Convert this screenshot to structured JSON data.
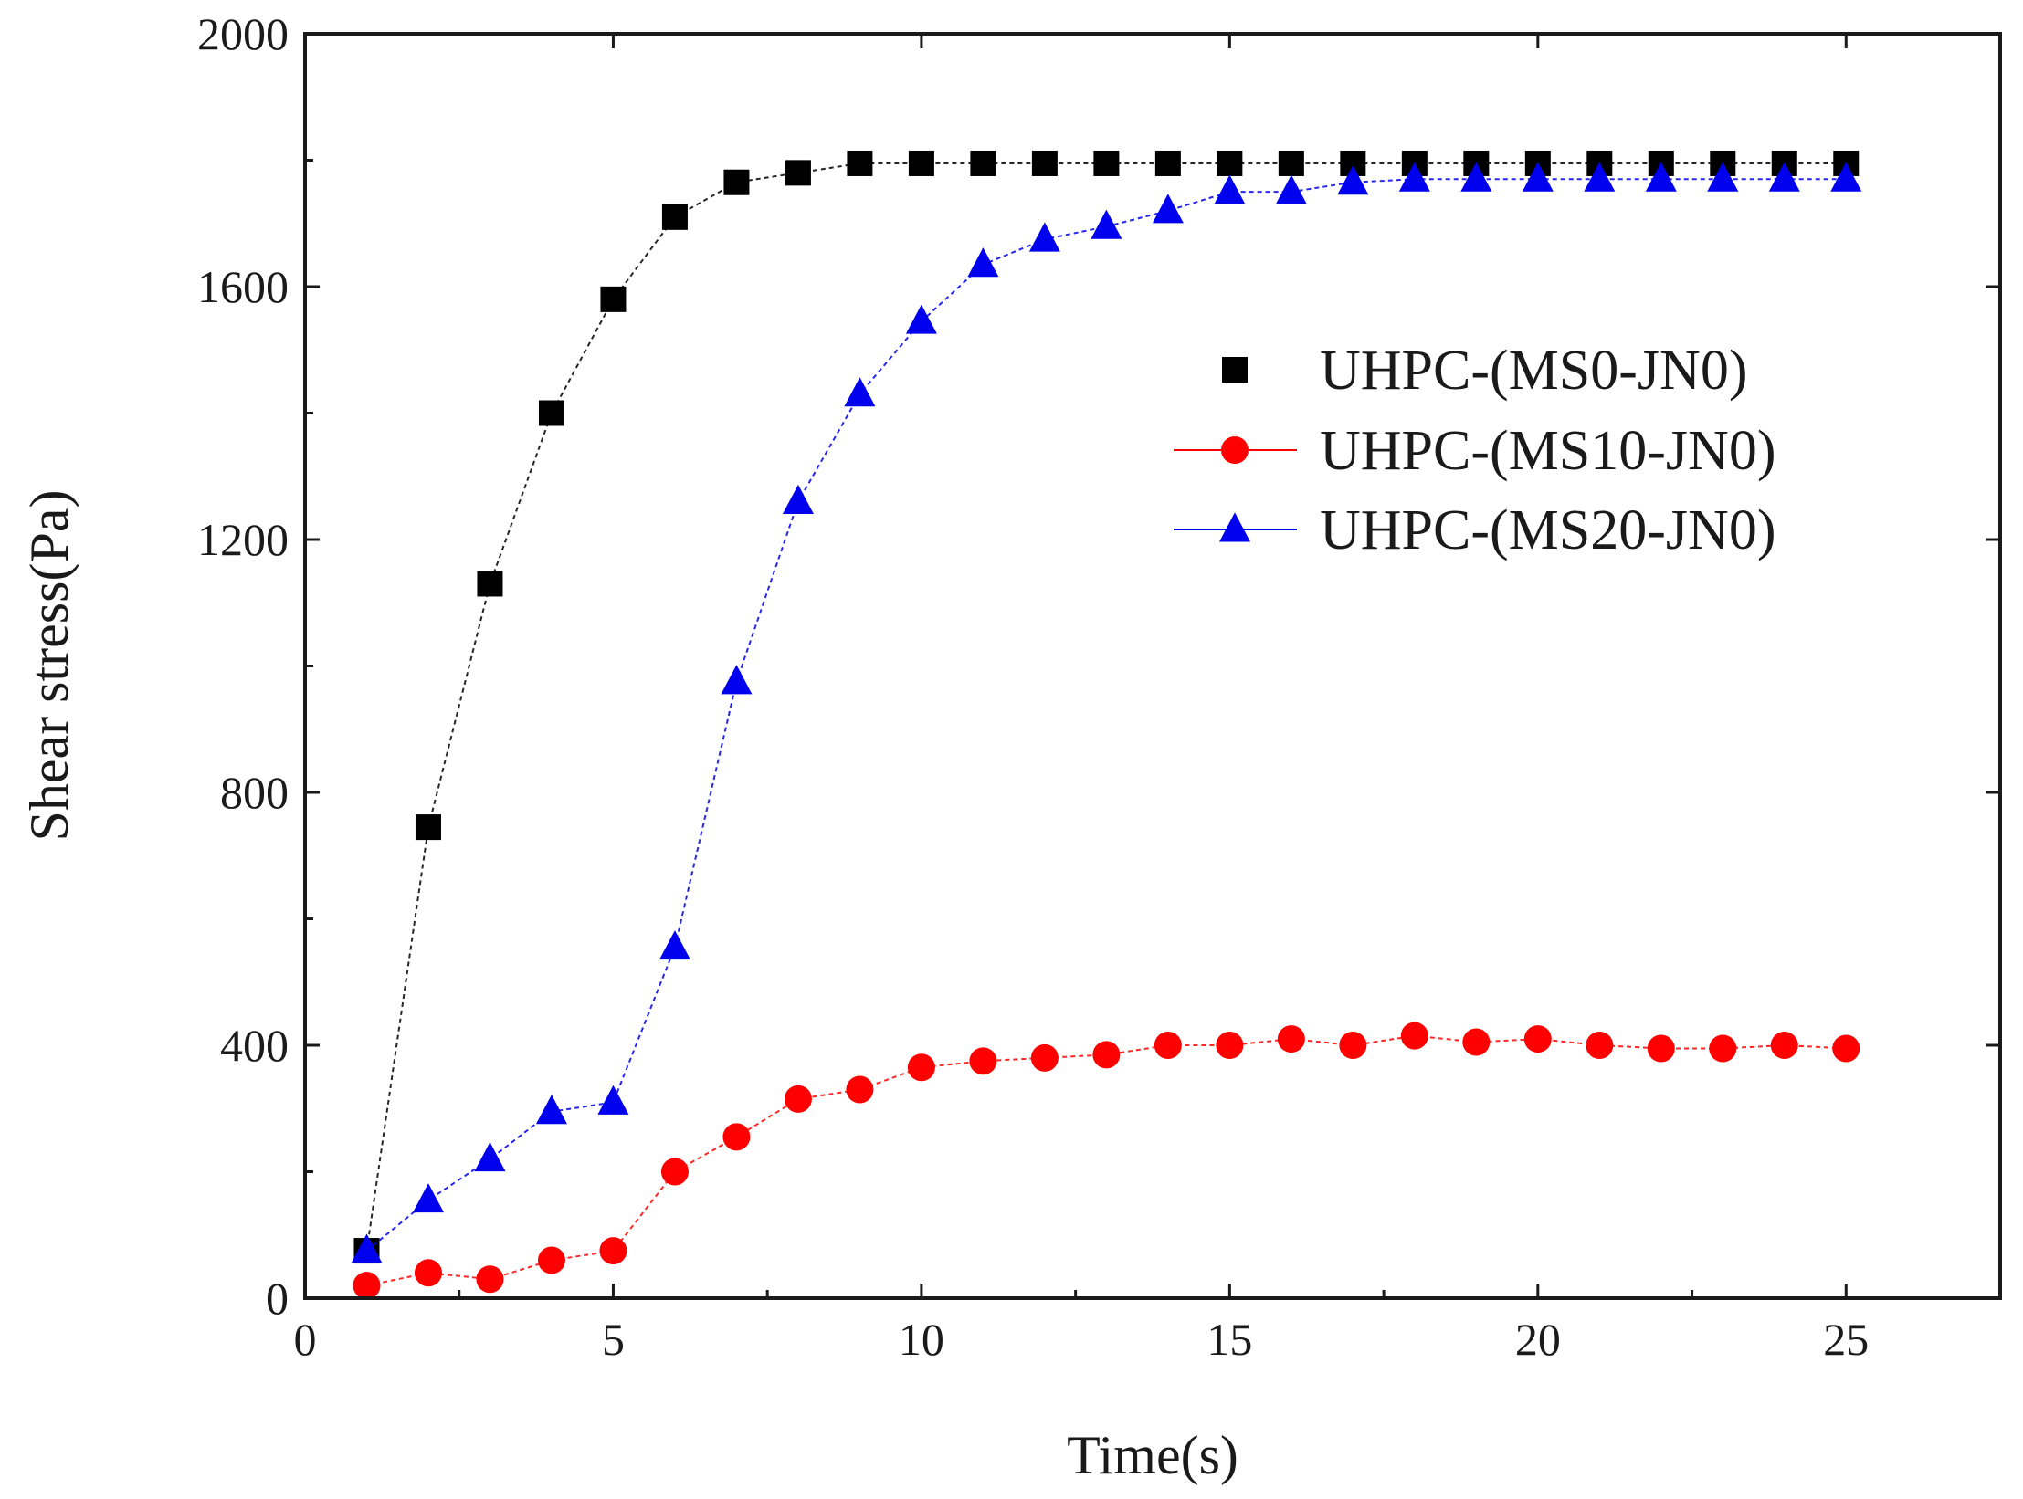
{
  "chart_data": {
    "type": "line",
    "title": "",
    "xlabel": "Time(s)",
    "ylabel": "Shear stress(Pa)",
    "xlim": [
      0,
      27.5
    ],
    "ylim": [
      0,
      2000
    ],
    "xticks": [
      0,
      5,
      10,
      15,
      20,
      25
    ],
    "yticks": [
      0,
      400,
      800,
      1200,
      1600,
      2000
    ],
    "grid": false,
    "legend_position": "right-center",
    "series": [
      {
        "name": "UHPC-(MS0-JN0)",
        "color": "#000000",
        "marker": "square",
        "x": [
          1,
          2,
          3,
          4,
          5,
          6,
          7,
          8,
          9,
          10,
          11,
          12,
          13,
          14,
          15,
          16,
          17,
          18,
          19,
          20,
          21,
          22,
          23,
          24,
          25
        ],
        "values": [
          75,
          745,
          1130,
          1400,
          1580,
          1710,
          1765,
          1780,
          1795,
          1795,
          1795,
          1795,
          1795,
          1795,
          1795,
          1795,
          1795,
          1795,
          1795,
          1795,
          1795,
          1795,
          1795,
          1795,
          1795
        ]
      },
      {
        "name": "UHPC-(MS10-JN0)",
        "color": "#ff0000",
        "marker": "circle",
        "x": [
          1,
          2,
          3,
          4,
          5,
          6,
          7,
          8,
          9,
          10,
          11,
          12,
          13,
          14,
          15,
          16,
          17,
          18,
          19,
          20,
          21,
          22,
          23,
          24,
          25
        ],
        "values": [
          20,
          40,
          30,
          60,
          75,
          200,
          255,
          315,
          330,
          365,
          375,
          380,
          385,
          400,
          400,
          410,
          400,
          415,
          405,
          410,
          400,
          395,
          395,
          400,
          395
        ]
      },
      {
        "name": "UHPC-(MS20-JN0)",
        "color": "#0000ee",
        "marker": "triangle",
        "x": [
          1,
          2,
          3,
          4,
          5,
          6,
          7,
          8,
          9,
          10,
          11,
          12,
          13,
          14,
          15,
          16,
          17,
          18,
          19,
          20,
          21,
          22,
          23,
          24,
          25
        ],
        "values": [
          75,
          155,
          220,
          295,
          310,
          555,
          975,
          1260,
          1430,
          1545,
          1635,
          1675,
          1695,
          1720,
          1750,
          1750,
          1765,
          1770,
          1770,
          1770,
          1770,
          1770,
          1770,
          1770,
          1770
        ]
      }
    ]
  }
}
